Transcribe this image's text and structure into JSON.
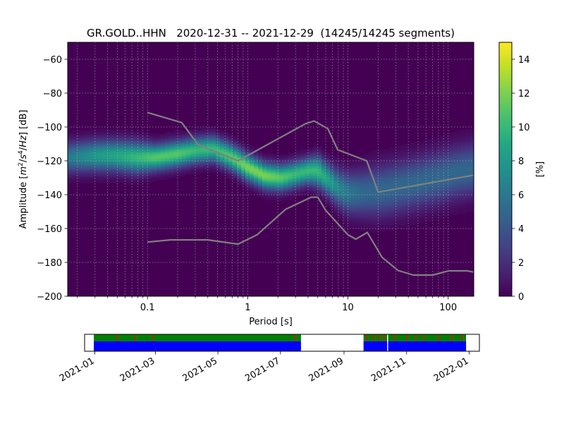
{
  "chart_data": {
    "type": "heatmap",
    "title": "GR.GOLD..HHN   2020-12-31 -- 2021-12-29  (14245/14245 segments)",
    "xlabel": "Period [s]",
    "ylabel_parts": [
      "Amplitude [",
      "m",
      "2",
      "/",
      "s",
      "4",
      "/",
      "Hz",
      "] [dB]"
    ],
    "x_scale": "log",
    "xlim": [
      0.016,
      180
    ],
    "ylim": [
      -200,
      -50
    ],
    "x_ticks": [
      {
        "value": 0.1,
        "label": "0.1"
      },
      {
        "value": 1,
        "label": "1"
      },
      {
        "value": 10,
        "label": "10"
      },
      {
        "value": 100,
        "label": "100"
      }
    ],
    "y_ticks": [
      {
        "value": -60,
        "label": "−60"
      },
      {
        "value": -80,
        "label": "−80"
      },
      {
        "value": -100,
        "label": "−100"
      },
      {
        "value": -120,
        "label": "−120"
      },
      {
        "value": -140,
        "label": "−140"
      },
      {
        "value": -160,
        "label": "−160"
      },
      {
        "value": -180,
        "label": "−180"
      },
      {
        "value": -200,
        "label": "−200"
      }
    ],
    "grid": true,
    "colormap": "viridis",
    "colorbar": {
      "label": "[%]",
      "range": [
        0,
        15
      ],
      "ticks": [
        {
          "value": 0,
          "label": "0"
        },
        {
          "value": 2,
          "label": "2"
        },
        {
          "value": 4,
          "label": "4"
        },
        {
          "value": 6,
          "label": "6"
        },
        {
          "value": 8,
          "label": "8"
        },
        {
          "value": 10,
          "label": "10"
        },
        {
          "value": 12,
          "label": "12"
        },
        {
          "value": 14,
          "label": "14"
        }
      ]
    },
    "density_ridge": {
      "period": [
        0.016,
        0.03,
        0.05,
        0.08,
        0.12,
        0.2,
        0.3,
        0.45,
        0.7,
        1.0,
        1.5,
        2.2,
        3.0,
        4.0,
        5.0,
        6.0,
        8.0,
        10.0,
        14.0,
        20.0,
        30.0,
        50.0,
        80.0,
        120.0,
        180.0
      ],
      "mode_db": [
        -118,
        -117,
        -117,
        -118,
        -118,
        -116,
        -114,
        -113,
        -118,
        -124,
        -129,
        -130,
        -128,
        -126,
        -126,
        -130,
        -136,
        -139,
        -139,
        -138,
        -136,
        -133,
        -130,
        -127,
        -125
      ],
      "width_db": [
        6,
        6,
        6,
        6,
        5,
        5,
        5,
        5,
        5,
        5,
        5,
        5,
        5,
        5,
        6,
        6,
        7,
        8,
        9,
        10,
        10,
        10,
        10,
        10,
        10
      ],
      "peak_pct": [
        6,
        8,
        9,
        10,
        11,
        11,
        10,
        10,
        11,
        12,
        12,
        11,
        10,
        10,
        10,
        9,
        7,
        6,
        5,
        5,
        5,
        5,
        5,
        5,
        5
      ]
    },
    "series": [
      {
        "x": [
          0.1,
          0.17,
          0.4,
          0.8,
          1.24,
          2.4,
          4.3,
          5.0,
          6.0,
          10.0,
          12.0,
          15.6,
          21.9,
          31.6,
          45.0,
          70.0,
          101.0,
          154.0,
          178.0
        ],
        "y": [
          -168,
          -166.7,
          -166.7,
          -169.2,
          -163.7,
          -148.6,
          -141.5,
          -141.5,
          -149.3,
          -163.7,
          -166.3,
          -162.3,
          -177.0,
          -184.8,
          -187.5,
          -187.5,
          -185.0,
          -185.0,
          -185.7
        ]
      },
      {
        "x": [
          0.1,
          0.22,
          0.32,
          0.8,
          3.8,
          4.6,
          6.3,
          7.9,
          15.4,
          20.0,
          178.0
        ],
        "y": [
          -91.5,
          -97.4,
          -110.5,
          -120.0,
          -98.0,
          -96.5,
          -101.0,
          -113.5,
          -120.0,
          -138.5,
          -128.5
        ]
      }
    ],
    "coverage": {
      "start": "2020-12-31",
      "end": "2021-12-29",
      "axis_range": [
        "2020-12-22",
        "2022-01-11"
      ],
      "date_ticks": [
        "2021-01",
        "2021-03",
        "2021-05",
        "2021-07",
        "2021-09",
        "2021-11",
        "2022-01"
      ],
      "data_intervals": [
        [
          "2020-12-31",
          "2021-07-21"
        ],
        [
          "2021-09-20",
          "2021-10-13"
        ],
        [
          "2021-10-14",
          "2021-12-29"
        ]
      ],
      "gap_markers": [
        "2021-01-23",
        "2021-02-09",
        "2021-02-26",
        "2021-07-15",
        "2021-09-23",
        "2021-09-30",
        "2021-10-05",
        "2021-10-10",
        "2021-10-21",
        "2021-11-01",
        "2021-11-10",
        "2021-11-18",
        "2021-12-02",
        "2021-12-15",
        "2021-12-25"
      ],
      "colors": {
        "data": "#0000ff",
        "processed": "#008000",
        "gap": "#ff0000"
      }
    },
    "colors": {
      "curve": "#808080",
      "frame": "#000000"
    }
  }
}
